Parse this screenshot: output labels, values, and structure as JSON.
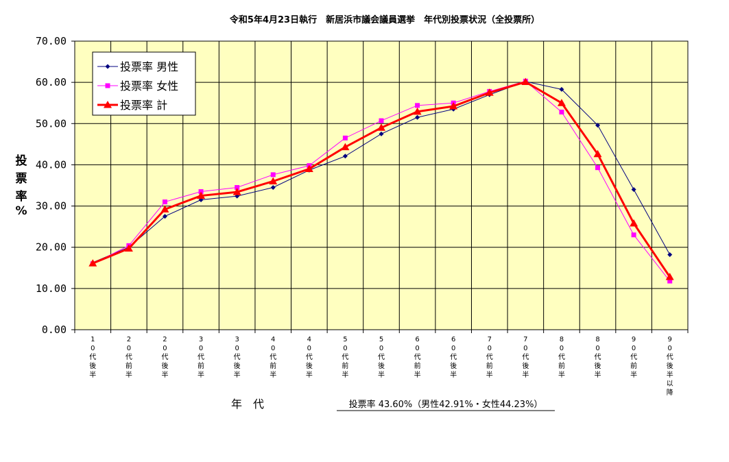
{
  "chart_data": {
    "type": "line",
    "title": "令和5年4月23日執行　新居浜市議会議員選挙　年代別投票状況（全投票所）",
    "ylabel": [
      "投",
      "票",
      "率",
      "%"
    ],
    "xlabel": "年　代",
    "summary": "投票率 43.60%（男性42.91%・女性44.23%）",
    "ylim": [
      0,
      70
    ],
    "yticks": [
      "0.00",
      "10.00",
      "20.00",
      "30.00",
      "40.00",
      "50.00",
      "60.00",
      "70.00"
    ],
    "grid": true,
    "legend_position": "top-left",
    "background_color": "#ffffc0",
    "categories": [
      [
        "1",
        "0",
        "代",
        "後",
        "半"
      ],
      [
        "2",
        "0",
        "代",
        "前",
        "半"
      ],
      [
        "2",
        "0",
        "代",
        "後",
        "半"
      ],
      [
        "3",
        "0",
        "代",
        "前",
        "半"
      ],
      [
        "3",
        "0",
        "代",
        "後",
        "半"
      ],
      [
        "4",
        "0",
        "代",
        "前",
        "半"
      ],
      [
        "4",
        "0",
        "代",
        "後",
        "半"
      ],
      [
        "5",
        "0",
        "代",
        "前",
        "半"
      ],
      [
        "5",
        "0",
        "代",
        "後",
        "半"
      ],
      [
        "6",
        "0",
        "代",
        "前",
        "半"
      ],
      [
        "6",
        "0",
        "代",
        "後",
        "半"
      ],
      [
        "7",
        "0",
        "代",
        "前",
        "半"
      ],
      [
        "7",
        "0",
        "代",
        "後",
        "半"
      ],
      [
        "8",
        "0",
        "代",
        "前",
        "半"
      ],
      [
        "8",
        "0",
        "代",
        "後",
        "半"
      ],
      [
        "9",
        "0",
        "代",
        "前",
        "半"
      ],
      [
        "9",
        "0",
        "代",
        "後",
        "半",
        "以",
        "降"
      ]
    ],
    "series": [
      {
        "name": "投票率 男性",
        "color": "#000080",
        "marker": "diamond",
        "values": [
          16.3,
          20.0,
          27.5,
          31.5,
          32.4,
          34.5,
          38.7,
          42.1,
          47.5,
          51.5,
          53.5,
          57.0,
          60.2,
          58.3,
          49.6,
          34.0,
          18.2
        ]
      },
      {
        "name": "投票率 女性",
        "color": "#ff00ff",
        "marker": "square",
        "values": [
          16.0,
          20.4,
          31.0,
          33.5,
          34.5,
          37.6,
          39.8,
          46.5,
          50.7,
          54.4,
          55.0,
          57.8,
          60.3,
          52.8,
          39.3,
          23.0,
          11.8
        ]
      },
      {
        "name": "投票率 計",
        "color": "#ff0000",
        "marker": "triangle",
        "values": [
          16.1,
          19.7,
          29.2,
          32.5,
          33.4,
          36.0,
          39.0,
          44.3,
          49.0,
          52.9,
          54.2,
          57.5,
          60.1,
          55.0,
          42.6,
          25.8,
          12.8
        ]
      }
    ]
  }
}
